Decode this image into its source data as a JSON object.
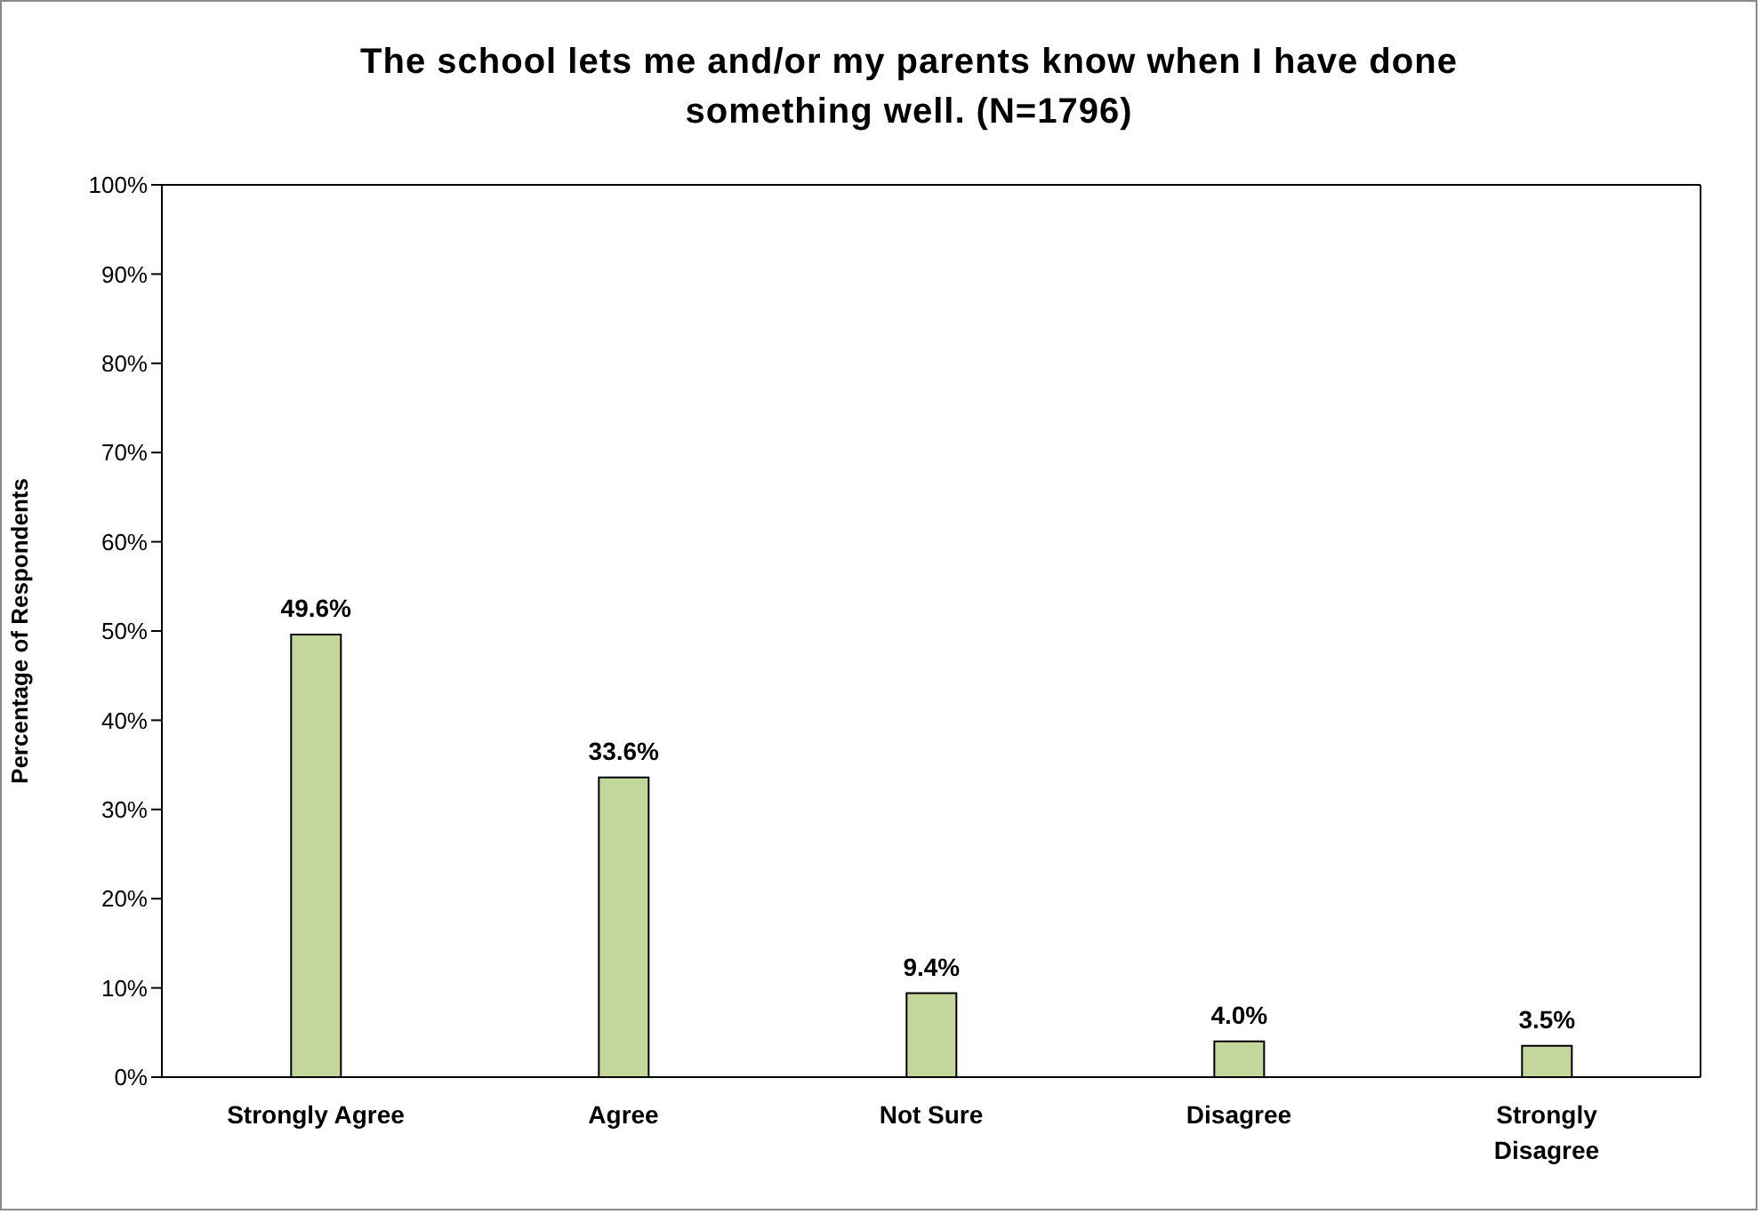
{
  "chart_data": {
    "type": "bar",
    "title": "The school lets me and/or my parents know when I have done something well.  (N=1796)",
    "ylabel": "Percentage of Respondents",
    "categories": [
      "Strongly Agree",
      "Agree",
      "Not Sure",
      "Disagree",
      "Strongly Disagree"
    ],
    "values": [
      49.6,
      33.6,
      9.4,
      4.0,
      3.5
    ],
    "value_labels": [
      "49.6%",
      "33.6%",
      "9.4%",
      "4.0%",
      "3.5%"
    ],
    "color": "#c4d79b",
    "ylim": [
      0,
      100
    ],
    "yticks": [
      {
        "value": 0,
        "label": "0%"
      },
      {
        "value": 10,
        "label": "10%"
      },
      {
        "value": 20,
        "label": "20%"
      },
      {
        "value": 30,
        "label": "30%"
      },
      {
        "value": 40,
        "label": "40%"
      },
      {
        "value": 50,
        "label": "50%"
      },
      {
        "value": 60,
        "label": "60%"
      },
      {
        "value": 70,
        "label": "70%"
      },
      {
        "value": 80,
        "label": "80%"
      },
      {
        "value": 90,
        "label": "90%"
      },
      {
        "value": 100,
        "label": "100%"
      }
    ],
    "grid": false,
    "legend": false
  }
}
